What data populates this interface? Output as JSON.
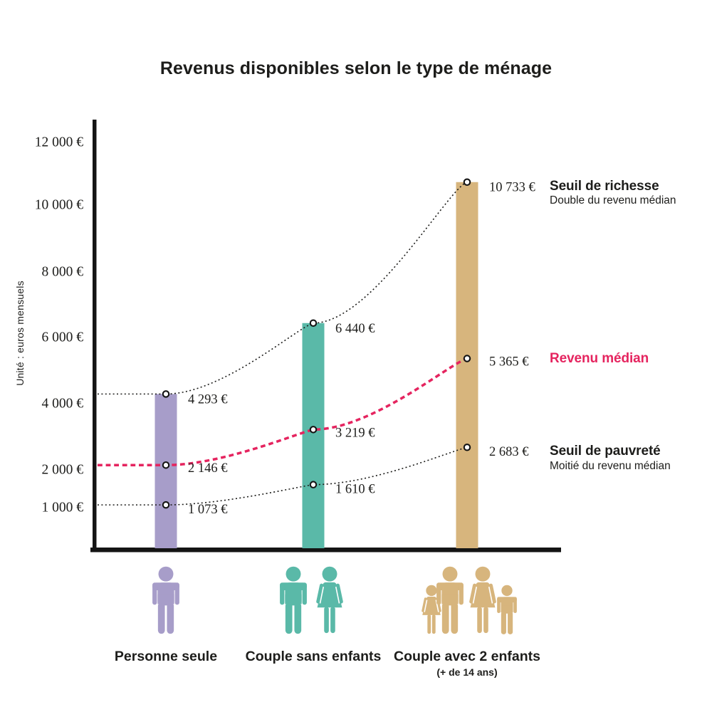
{
  "title": "Revenus disponibles selon le type de ménage",
  "chart_data": {
    "type": "bar",
    "title": "Revenus disponibles selon le type de ménage",
    "ylabel": "Unité : euros mensuels",
    "ylim": [
      0,
      12000
    ],
    "grid": false,
    "y_ticks": [
      {
        "label": "12 000 €",
        "value": 12000
      },
      {
        "label": "10 000 €",
        "value": 10000
      },
      {
        "label": "8 000 €",
        "value": 8000
      },
      {
        "label": "6 000 €",
        "value": 6000
      },
      {
        "label": "4 000 €",
        "value": 4000
      },
      {
        "label": "2 000 €",
        "value": 2000
      },
      {
        "label": "1 000 €",
        "value": 1000
      }
    ],
    "categories": [
      {
        "label": "Personne seule",
        "sublabel": "",
        "color": "#a79dc9",
        "icon": "single-man-pictogram",
        "figures": [
          "man"
        ]
      },
      {
        "label": "Couple sans enfants",
        "sublabel": "",
        "color": "#5ab9a8",
        "icon": "man-and-woman-pictogram",
        "figures": [
          "man",
          "woman"
        ]
      },
      {
        "label": "Couple avec 2 enfants",
        "sublabel": "(+ de 14 ans)",
        "color": "#d7b57d",
        "icon": "family-two-adults-two-children-pictogram",
        "figures": [
          "girl",
          "man",
          "woman",
          "boy"
        ]
      }
    ],
    "series": [
      {
        "name": "Seuil de richesse",
        "description": "Double du revenu médian",
        "values": [
          4293,
          6440,
          10733
        ],
        "value_labels": [
          "4 293 €",
          "6 440 €",
          "10 733 €"
        ],
        "line_style": "dotted",
        "color": "#1d1d1b",
        "name_color": "#1d1d1b"
      },
      {
        "name": "Revenu médian",
        "description": "",
        "values": [
          2146,
          3219,
          5365
        ],
        "value_labels": [
          "2 146 €",
          "3 219 €",
          "5 365 €"
        ],
        "line_style": "dashed",
        "color": "#e5245f",
        "name_color": "#e5245f"
      },
      {
        "name": "Seuil de pauvreté",
        "description": "Moitié du revenu médian",
        "values": [
          1073,
          1610,
          2683
        ],
        "value_labels": [
          "1 073 €",
          "1 610 €",
          "2 683 €"
        ],
        "line_style": "dotted",
        "color": "#1d1d1b",
        "name_color": "#1d1d1b"
      }
    ],
    "bars_series": "Seuil de richesse",
    "legend_position": "right-annotations"
  }
}
